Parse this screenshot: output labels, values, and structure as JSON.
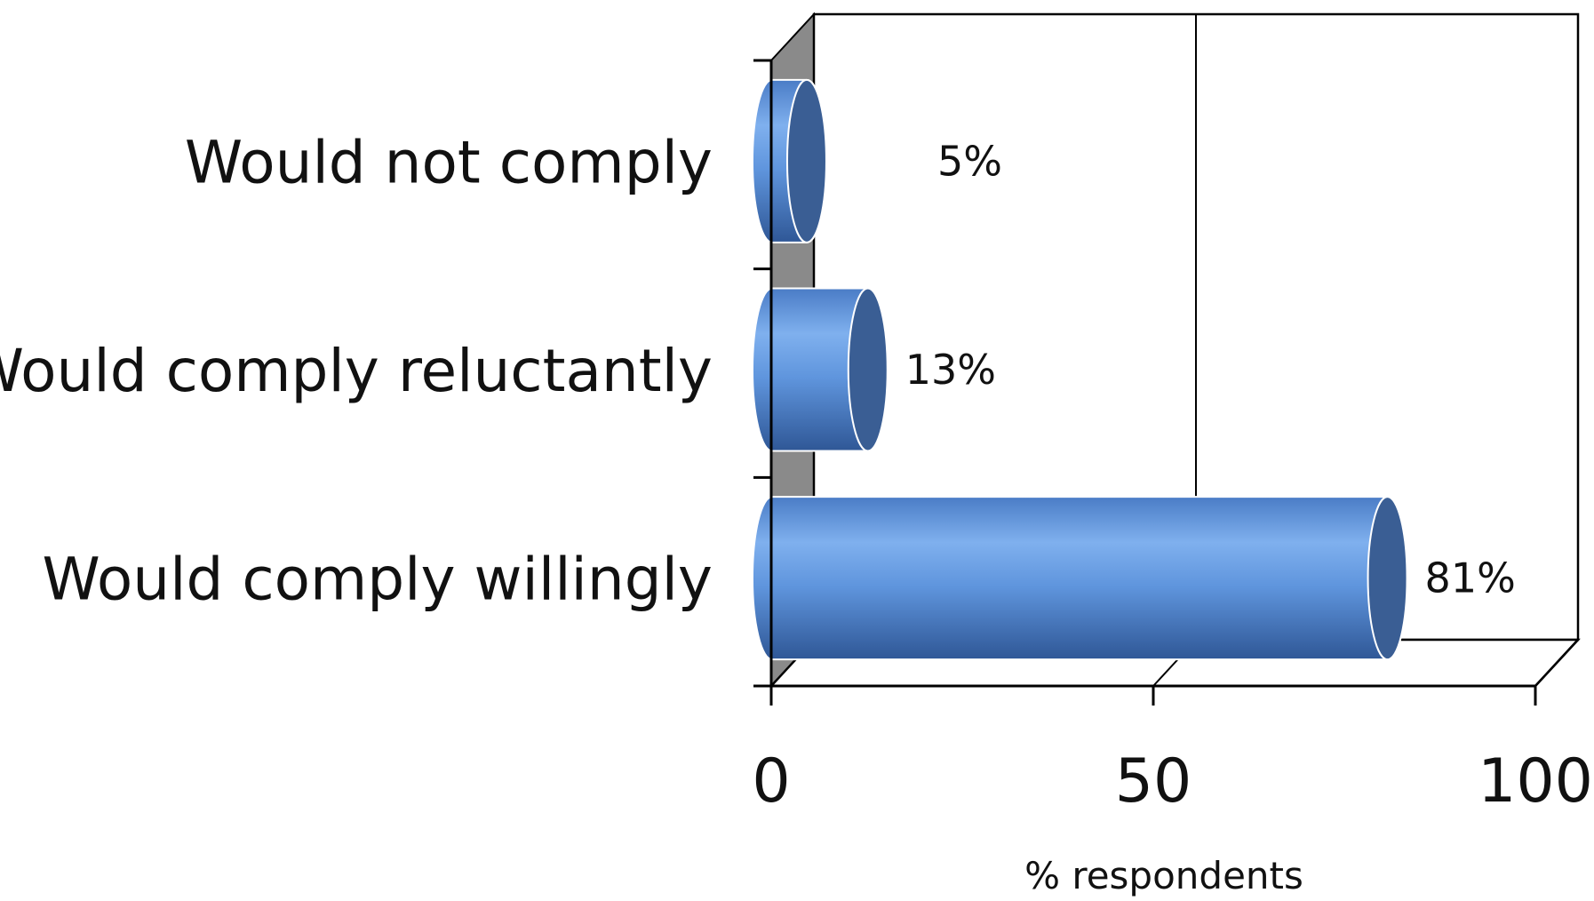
{
  "chart_data": {
    "type": "bar",
    "orientation": "horizontal",
    "style": "3d-cylinder",
    "categories": [
      "Would not comply",
      "Would comply reluctantly",
      "Would comply willingly"
    ],
    "values": [
      5,
      13,
      81
    ],
    "value_labels": [
      "5%",
      "13%",
      "81%"
    ],
    "xlabel": "% respondents",
    "ylabel": "",
    "xlim": [
      0,
      100
    ],
    "x_ticks": [
      0,
      50,
      100
    ],
    "x_tick_labels": [
      "0",
      "50",
      "100"
    ],
    "grid": true,
    "legend": "none",
    "colors": {
      "bar_body": "#5f95dd",
      "bar_body_light": "#8bb8f0",
      "bar_body_dark": "#3a66ad",
      "bar_cap": "#3a5e94",
      "side_wall": "#8a8a8a",
      "axis": "#000000"
    }
  }
}
